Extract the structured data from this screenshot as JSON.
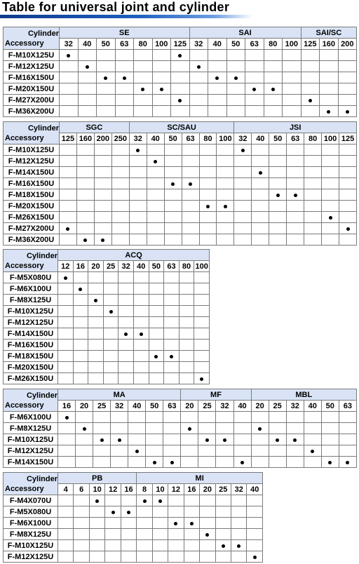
{
  "title": "Table for universal joint and cylinder",
  "row_header_top": "Cylinder",
  "row_header_bottom": "Accessory",
  "tables": [
    {
      "groups": [
        {
          "name": "SE",
          "sizes": [
            "32",
            "40",
            "50",
            "63",
            "80",
            "100",
            "125"
          ]
        },
        {
          "name": "SAI",
          "sizes": [
            "32",
            "40",
            "50",
            "63",
            "80",
            "100"
          ]
        },
        {
          "name": "SAI/SC",
          "sizes": [
            "125",
            "160",
            "200"
          ]
        }
      ],
      "rows": [
        {
          "accessory": "F-M10X125U",
          "marks": [
            0,
            6
          ]
        },
        {
          "accessory": "F-M12X125U",
          "marks": [
            1,
            7
          ]
        },
        {
          "accessory": "F-M16X150U",
          "marks": [
            2,
            3,
            8,
            9
          ]
        },
        {
          "accessory": "F-M20X150U",
          "marks": [
            4,
            5,
            10,
            11
          ]
        },
        {
          "accessory": "F-M27X200U",
          "marks": [
            6,
            13
          ]
        },
        {
          "accessory": "F-M36X200U",
          "marks": [
            14,
            15
          ]
        }
      ]
    },
    {
      "groups": [
        {
          "name": "SGC",
          "sizes": [
            "125",
            "160",
            "200",
            "250"
          ]
        },
        {
          "name": "SC/SAU",
          "sizes": [
            "32",
            "40",
            "50",
            "63",
            "80",
            "100"
          ]
        },
        {
          "name": "JSI",
          "sizes": [
            "32",
            "40",
            "50",
            "63",
            "80",
            "100",
            "125"
          ]
        }
      ],
      "rows": [
        {
          "accessory": "F-M10X125U",
          "marks": [
            4,
            10
          ]
        },
        {
          "accessory": "F-M12X125U",
          "marks": [
            5
          ]
        },
        {
          "accessory": "F-M14X150U",
          "marks": [
            11
          ]
        },
        {
          "accessory": "F-M16X150U",
          "marks": [
            6,
            7
          ]
        },
        {
          "accessory": "F-M18X150U",
          "marks": [
            12,
            13
          ]
        },
        {
          "accessory": "F-M20X150U",
          "marks": [
            8,
            9
          ]
        },
        {
          "accessory": "F-M26X150U",
          "marks": [
            15
          ]
        },
        {
          "accessory": "F-M27X200U",
          "marks": [
            0,
            16
          ]
        },
        {
          "accessory": "F-M36X200U",
          "marks": [
            1,
            2
          ]
        }
      ]
    },
    {
      "groups": [
        {
          "name": "ACQ",
          "sizes": [
            "12",
            "16",
            "20",
            "25",
            "32",
            "40",
            "50",
            "63",
            "80",
            "100"
          ]
        }
      ],
      "rows": [
        {
          "accessory": "F-M5X080U",
          "marks": [
            0
          ]
        },
        {
          "accessory": "F-M6X100U",
          "marks": [
            1
          ]
        },
        {
          "accessory": "F-M8X125U",
          "marks": [
            2
          ]
        },
        {
          "accessory": "F-M10X125U",
          "marks": [
            3
          ]
        },
        {
          "accessory": "F-M12X125U",
          "marks": []
        },
        {
          "accessory": "F-M14X150U",
          "marks": [
            4,
            5
          ]
        },
        {
          "accessory": "F-M16X150U",
          "marks": []
        },
        {
          "accessory": "F-M18X150U",
          "marks": [
            6,
            7
          ]
        },
        {
          "accessory": "F-M20X150U",
          "marks": []
        },
        {
          "accessory": "F-M26X150U",
          "marks": [
            9
          ]
        }
      ]
    },
    {
      "groups": [
        {
          "name": "MA",
          "sizes": [
            "16",
            "20",
            "25",
            "32",
            "40",
            "50",
            "63"
          ]
        },
        {
          "name": "MF",
          "sizes": [
            "20",
            "25",
            "32",
            "40"
          ]
        },
        {
          "name": "MBL",
          "sizes": [
            "20",
            "25",
            "32",
            "40",
            "50",
            "63"
          ]
        }
      ],
      "rows": [
        {
          "accessory": "F-M6X100U",
          "marks": [
            0
          ]
        },
        {
          "accessory": "F-M8X125U",
          "marks": [
            1,
            7,
            11
          ]
        },
        {
          "accessory": "F-M10X125U",
          "marks": [
            2,
            3,
            8,
            9,
            12,
            13
          ]
        },
        {
          "accessory": "F-M12X125U",
          "marks": [
            4,
            14
          ]
        },
        {
          "accessory": "F-M14X150U",
          "marks": [
            5,
            6,
            10,
            15,
            16
          ]
        }
      ]
    },
    {
      "groups": [
        {
          "name": "PB",
          "sizes": [
            "4",
            "6",
            "10",
            "12",
            "16"
          ]
        },
        {
          "name": "MI",
          "sizes": [
            "8",
            "10",
            "12",
            "16",
            "20",
            "25",
            "32",
            "40"
          ]
        }
      ],
      "rows": [
        {
          "accessory": "F-M4X070U",
          "marks": [
            2,
            5,
            6
          ]
        },
        {
          "accessory": "F-M5X080U",
          "marks": [
            3,
            4
          ]
        },
        {
          "accessory": "F-M6X100U",
          "marks": [
            7,
            8
          ]
        },
        {
          "accessory": "F-M8X125U",
          "marks": [
            9
          ]
        },
        {
          "accessory": "F-M10X125U",
          "marks": [
            10,
            11
          ]
        },
        {
          "accessory": "F-M12X125U",
          "marks": [
            12
          ]
        }
      ]
    }
  ]
}
